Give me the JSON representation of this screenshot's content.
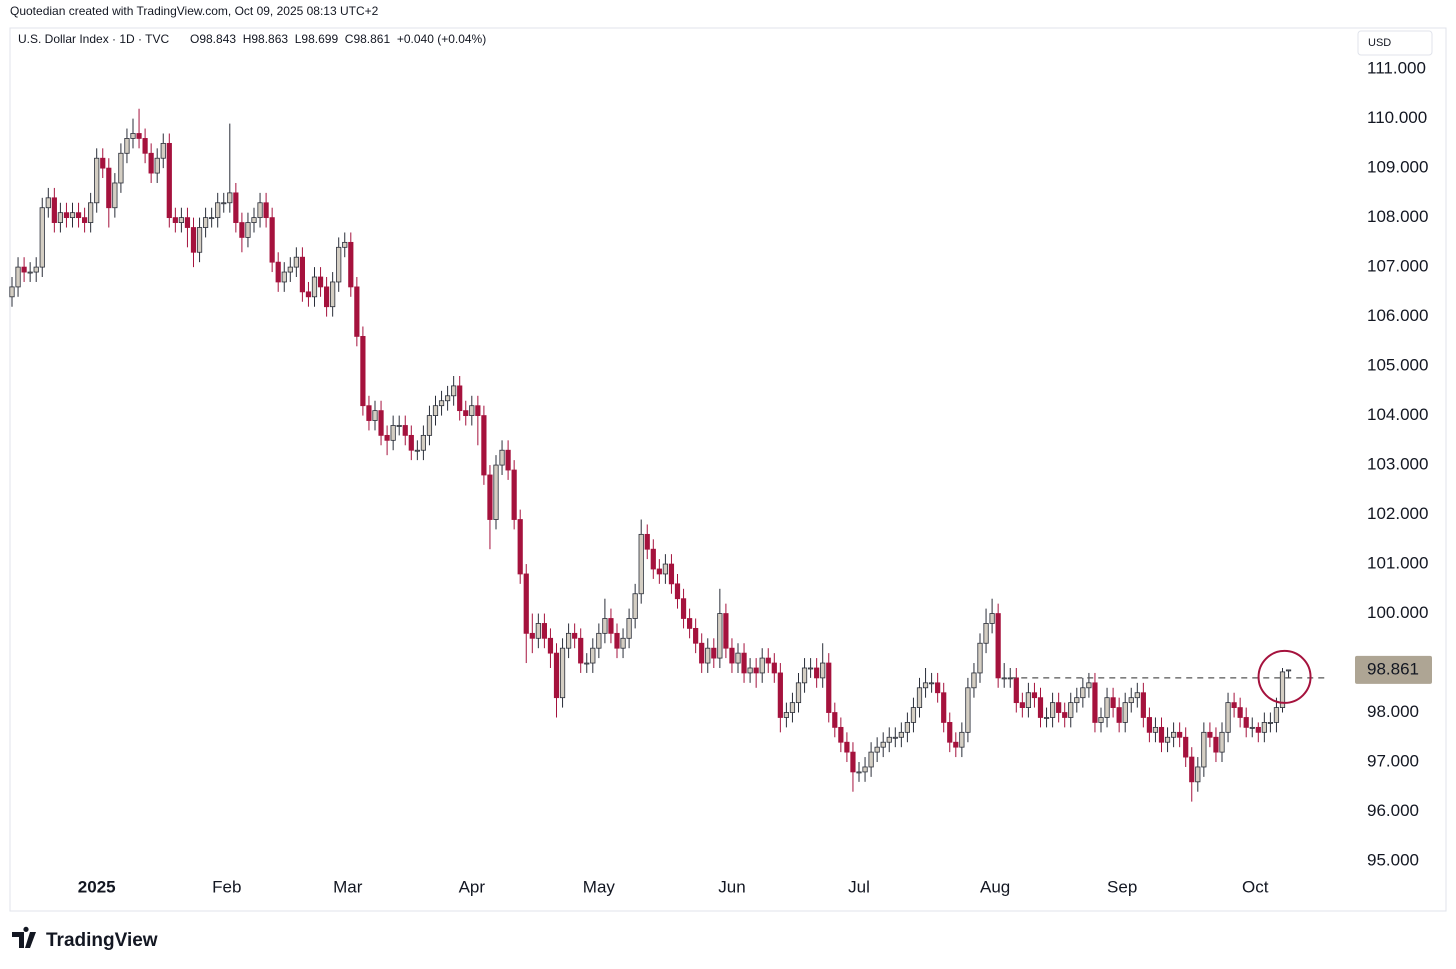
{
  "chart_data": {
    "type": "candlestick",
    "attribution": "Quotedian created with TradingView.com, Oct 09, 2025 08:13 UTC+2",
    "title": "U.S. Dollar Index · 1D · TVC",
    "ohlc_legend": "O98.843  H98.863  L98.699  C98.861  +0.040 (+0.04%)",
    "currency": "USD",
    "logo": "TradingView",
    "up_color": "#d4cec3",
    "down_color": "#a5123d",
    "ylim": [
      94.01,
      111.69
    ],
    "yticks": [
      {
        "value": 111,
        "label": "111.000"
      },
      {
        "value": 110,
        "label": "110.000"
      },
      {
        "value": 109,
        "label": "109.000"
      },
      {
        "value": 108,
        "label": "108.000"
      },
      {
        "value": 107,
        "label": "107.000"
      },
      {
        "value": 106,
        "label": "106.000"
      },
      {
        "value": 105,
        "label": "105.000"
      },
      {
        "value": 104,
        "label": "104.000"
      },
      {
        "value": 103,
        "label": "103.000"
      },
      {
        "value": 102,
        "label": "102.000"
      },
      {
        "value": 101,
        "label": "101.000"
      },
      {
        "value": 100,
        "label": "100.000"
      },
      {
        "value": 98,
        "label": "98.000"
      },
      {
        "value": 97,
        "label": "97.000"
      },
      {
        "value": 96,
        "label": "96.000"
      },
      {
        "value": 95,
        "label": "95.000"
      }
    ],
    "xticks": [
      {
        "value": 14,
        "label": "2025"
      },
      {
        "value": 35.5,
        "label": "Feb"
      },
      {
        "value": 55.5,
        "label": "Mar"
      },
      {
        "value": 76,
        "label": "Apr"
      },
      {
        "value": 97,
        "label": "May"
      },
      {
        "value": 119,
        "label": "Jun"
      },
      {
        "value": 140,
        "label": "Jul"
      },
      {
        "value": 162.5,
        "label": "Aug"
      },
      {
        "value": 183.5,
        "label": "Sep"
      },
      {
        "value": 205.5,
        "label": "Oct"
      }
    ],
    "hline": {
      "value": 98.7,
      "start": 165,
      "style": "dashed"
    },
    "open": [
      106.4,
      106.6,
      107.0,
      106.9,
      106.9,
      107.0,
      108.2,
      108.4,
      107.9,
      108.1,
      108.0,
      108.1,
      108.0,
      107.9,
      108.3,
      109.2,
      109.0,
      108.2,
      108.7,
      109.3,
      109.6,
      109.7,
      109.6,
      109.3,
      108.9,
      109.2,
      109.5,
      108.0,
      107.9,
      108.0,
      107.8,
      107.3,
      107.8,
      108.0,
      108.0,
      108.3,
      108.3,
      108.5,
      107.9,
      107.6,
      107.9,
      108.0,
      108.3,
      108.0,
      107.1,
      106.7,
      106.9,
      107.0,
      107.2,
      106.5,
      106.4,
      106.8,
      106.6,
      106.2,
      106.7,
      107.4,
      107.5,
      106.6,
      105.6,
      104.2,
      103.9,
      104.1,
      103.6,
      103.5,
      103.8,
      103.8,
      103.6,
      103.3,
      103.3,
      103.6,
      104.0,
      104.2,
      104.3,
      104.4,
      104.6,
      104.1,
      104.0,
      104.2,
      104.0,
      102.8,
      101.9,
      103.0,
      103.3,
      102.9,
      101.9,
      100.8,
      99.6,
      99.5,
      99.8,
      99.5,
      99.2,
      98.3,
      99.3,
      99.6,
      99.5,
      99.0,
      99.0,
      99.3,
      99.6,
      99.9,
      99.6,
      99.3,
      99.5,
      99.9,
      100.4,
      101.6,
      101.3,
      100.9,
      100.8,
      101.0,
      100.6,
      100.3,
      99.9,
      99.7,
      99.4,
      99.0,
      99.3,
      99.1,
      100.0,
      99.3,
      99.0,
      99.2,
      98.8,
      98.9,
      98.8,
      99.1,
      99.0,
      98.8,
      97.9,
      98.0,
      98.2,
      98.6,
      98.9,
      98.9,
      98.7,
      99.0,
      98.0,
      97.7,
      97.4,
      97.2,
      96.8,
      96.8,
      96.9,
      97.2,
      97.3,
      97.4,
      97.5,
      97.5,
      97.6,
      97.8,
      98.1,
      98.5,
      98.6,
      98.6,
      98.4,
      97.8,
      97.4,
      97.3,
      97.6,
      98.5,
      98.8,
      99.4,
      99.8,
      100.0,
      98.7,
      98.7,
      98.7,
      98.2,
      98.1,
      98.4,
      98.3,
      97.9,
      97.9,
      98.2,
      98.0,
      97.9,
      98.2,
      98.3,
      98.5,
      98.6,
      97.8,
      97.9,
      98.3,
      98.1,
      97.8,
      98.2,
      98.3,
      98.4,
      97.9,
      97.6,
      97.7,
      97.4,
      97.5,
      97.6,
      97.5,
      97.1,
      96.6,
      96.9,
      97.6,
      97.5,
      97.2,
      97.6,
      98.2,
      98.1,
      97.9,
      97.7,
      97.7,
      97.6,
      97.8,
      97.8,
      98.1,
      98.843
    ],
    "high": [
      106.8,
      107.2,
      107.2,
      107.1,
      107.2,
      108.4,
      108.6,
      108.6,
      108.3,
      108.3,
      108.3,
      108.3,
      108.2,
      108.5,
      109.4,
      109.4,
      109.2,
      108.9,
      109.5,
      109.8,
      110.0,
      110.2,
      109.8,
      109.5,
      109.4,
      109.7,
      109.7,
      108.2,
      108.2,
      108.2,
      108.0,
      108.0,
      108.2,
      108.2,
      108.5,
      108.5,
      109.9,
      108.7,
      108.1,
      108.1,
      108.2,
      108.5,
      108.5,
      108.2,
      107.3,
      107.1,
      107.2,
      107.4,
      107.4,
      106.7,
      107.0,
      107.0,
      106.8,
      106.9,
      107.6,
      107.7,
      107.7,
      106.8,
      105.8,
      104.4,
      104.3,
      104.3,
      103.8,
      104.0,
      104.0,
      104.0,
      103.8,
      103.5,
      103.8,
      104.2,
      104.4,
      104.5,
      104.6,
      104.8,
      104.8,
      104.3,
      104.4,
      104.4,
      104.2,
      103.0,
      103.2,
      103.5,
      103.5,
      103.1,
      102.1,
      101.0,
      100.0,
      100.0,
      100.0,
      99.7,
      99.4,
      99.5,
      99.8,
      99.8,
      99.7,
      99.2,
      99.5,
      99.8,
      100.3,
      100.1,
      99.8,
      99.7,
      100.1,
      100.6,
      101.9,
      101.8,
      101.5,
      101.1,
      101.2,
      101.2,
      100.8,
      100.5,
      100.1,
      99.9,
      99.6,
      99.5,
      99.5,
      100.5,
      100.2,
      99.5,
      99.4,
      99.4,
      99.1,
      99.1,
      99.3,
      99.3,
      99.2,
      99.0,
      98.2,
      98.4,
      98.8,
      99.1,
      99.1,
      99.1,
      99.4,
      99.2,
      98.2,
      97.9,
      97.6,
      97.4,
      97.0,
      97.1,
      97.4,
      97.5,
      97.6,
      97.7,
      97.7,
      97.8,
      98.0,
      98.3,
      98.7,
      98.9,
      98.8,
      98.8,
      98.6,
      98.0,
      97.6,
      97.8,
      98.7,
      99.0,
      99.6,
      100.1,
      100.3,
      100.2,
      99.0,
      98.9,
      98.9,
      98.4,
      98.6,
      98.6,
      98.5,
      98.1,
      98.4,
      98.4,
      98.2,
      98.4,
      98.5,
      98.7,
      98.8,
      98.8,
      98.1,
      98.5,
      98.5,
      98.3,
      98.4,
      98.5,
      98.6,
      98.6,
      98.1,
      97.9,
      97.9,
      97.7,
      97.8,
      97.8,
      97.7,
      97.3,
      97.1,
      97.8,
      97.8,
      97.7,
      97.8,
      98.4,
      98.4,
      98.3,
      98.1,
      97.9,
      97.8,
      98.0,
      98.0,
      98.3,
      98.9,
      98.863
    ],
    "low": [
      106.2,
      106.4,
      106.7,
      106.7,
      106.7,
      106.8,
      108.0,
      107.7,
      107.7,
      107.8,
      107.8,
      107.8,
      107.7,
      107.7,
      108.1,
      108.8,
      107.8,
      108.0,
      108.5,
      109.1,
      109.4,
      109.4,
      109.1,
      108.7,
      108.7,
      109.0,
      107.8,
      107.7,
      107.7,
      107.4,
      107.0,
      107.1,
      107.6,
      107.8,
      107.8,
      108.1,
      108.1,
      107.7,
      107.3,
      107.4,
      107.7,
      107.8,
      107.8,
      106.9,
      106.5,
      106.5,
      106.7,
      106.8,
      106.3,
      106.2,
      106.2,
      106.4,
      106.0,
      106.0,
      106.5,
      107.2,
      106.4,
      105.4,
      104.0,
      103.7,
      103.7,
      103.4,
      103.2,
      103.3,
      103.6,
      103.4,
      103.1,
      103.1,
      103.1,
      103.4,
      103.8,
      104.0,
      104.1,
      104.2,
      103.9,
      103.8,
      103.8,
      103.4,
      102.6,
      101.3,
      101.7,
      102.8,
      102.7,
      101.7,
      100.6,
      99.0,
      99.2,
      99.3,
      99.3,
      98.9,
      97.9,
      98.1,
      99.1,
      99.3,
      98.8,
      98.8,
      98.8,
      99.1,
      99.4,
      99.4,
      99.1,
      99.1,
      99.3,
      99.7,
      100.2,
      101.1,
      100.7,
      100.6,
      100.6,
      100.4,
      100.1,
      99.7,
      99.5,
      99.2,
      98.8,
      98.8,
      98.9,
      98.9,
      99.1,
      98.8,
      98.8,
      98.6,
      98.6,
      98.5,
      98.6,
      98.8,
      98.6,
      97.6,
      97.7,
      97.8,
      98.0,
      98.4,
      98.7,
      98.5,
      98.5,
      97.8,
      97.5,
      97.2,
      97.0,
      96.4,
      96.6,
      96.6,
      96.7,
      97.0,
      97.1,
      97.2,
      97.3,
      97.3,
      97.4,
      97.6,
      97.9,
      98.3,
      98.4,
      98.2,
      97.6,
      97.2,
      97.1,
      97.1,
      97.4,
      98.3,
      98.6,
      99.2,
      99.6,
      98.5,
      98.5,
      98.5,
      98.0,
      97.9,
      97.9,
      98.1,
      97.7,
      97.7,
      97.7,
      97.8,
      97.7,
      97.7,
      98.0,
      98.1,
      98.3,
      97.6,
      97.6,
      97.7,
      97.9,
      97.6,
      97.6,
      98.0,
      98.1,
      97.7,
      97.4,
      97.4,
      97.2,
      97.2,
      97.3,
      97.3,
      96.9,
      96.2,
      96.4,
      96.7,
      97.3,
      97.0,
      97.0,
      97.4,
      97.9,
      97.7,
      97.5,
      97.5,
      97.4,
      97.4,
      97.6,
      97.6,
      98.0,
      98.699
    ],
    "close": [
      106.6,
      107.0,
      106.9,
      106.9,
      107.0,
      108.2,
      108.4,
      107.9,
      108.1,
      108.0,
      108.1,
      108.0,
      107.9,
      108.3,
      109.2,
      109.0,
      108.2,
      108.7,
      109.3,
      109.6,
      109.7,
      109.6,
      109.3,
      108.9,
      109.2,
      109.5,
      108.0,
      107.9,
      108.0,
      107.8,
      107.3,
      107.8,
      108.0,
      108.0,
      108.3,
      108.3,
      108.5,
      107.9,
      107.6,
      107.9,
      108.0,
      108.3,
      108.0,
      107.1,
      106.7,
      106.9,
      107.0,
      107.2,
      106.5,
      106.4,
      106.8,
      106.6,
      106.2,
      106.7,
      107.4,
      107.5,
      106.6,
      105.6,
      104.2,
      103.9,
      104.1,
      103.6,
      103.5,
      103.8,
      103.8,
      103.6,
      103.3,
      103.3,
      103.6,
      104.0,
      104.2,
      104.3,
      104.4,
      104.6,
      104.1,
      104.0,
      104.2,
      104.0,
      102.8,
      101.9,
      103.0,
      103.3,
      102.9,
      101.9,
      100.8,
      99.6,
      99.5,
      99.8,
      99.5,
      99.2,
      98.3,
      99.3,
      99.6,
      99.5,
      99.0,
      99.0,
      99.3,
      99.6,
      99.9,
      99.6,
      99.3,
      99.5,
      99.9,
      100.4,
      101.6,
      101.3,
      100.9,
      100.8,
      101.0,
      100.6,
      100.3,
      99.9,
      99.7,
      99.4,
      99.0,
      99.3,
      99.1,
      100.0,
      99.3,
      99.0,
      99.2,
      98.8,
      98.9,
      98.8,
      99.1,
      99.0,
      98.8,
      97.9,
      98.0,
      98.2,
      98.6,
      98.9,
      98.9,
      98.7,
      99.0,
      98.0,
      97.7,
      97.4,
      97.2,
      96.8,
      96.8,
      96.9,
      97.2,
      97.3,
      97.4,
      97.5,
      97.5,
      97.6,
      97.8,
      98.1,
      98.5,
      98.6,
      98.6,
      98.4,
      97.8,
      97.4,
      97.3,
      97.6,
      98.5,
      98.8,
      99.4,
      99.8,
      100.0,
      98.7,
      98.7,
      98.7,
      98.2,
      98.1,
      98.4,
      98.3,
      97.9,
      97.9,
      98.2,
      98.0,
      97.9,
      98.2,
      98.3,
      98.5,
      98.6,
      97.8,
      97.9,
      98.3,
      98.1,
      97.8,
      98.2,
      98.3,
      98.4,
      97.9,
      97.6,
      97.7,
      97.4,
      97.5,
      97.6,
      97.5,
      97.1,
      96.6,
      96.9,
      97.6,
      97.5,
      97.2,
      97.6,
      98.2,
      98.1,
      97.9,
      97.7,
      97.7,
      97.6,
      97.8,
      97.8,
      98.1,
      98.821,
      98.861
    ]
  }
}
